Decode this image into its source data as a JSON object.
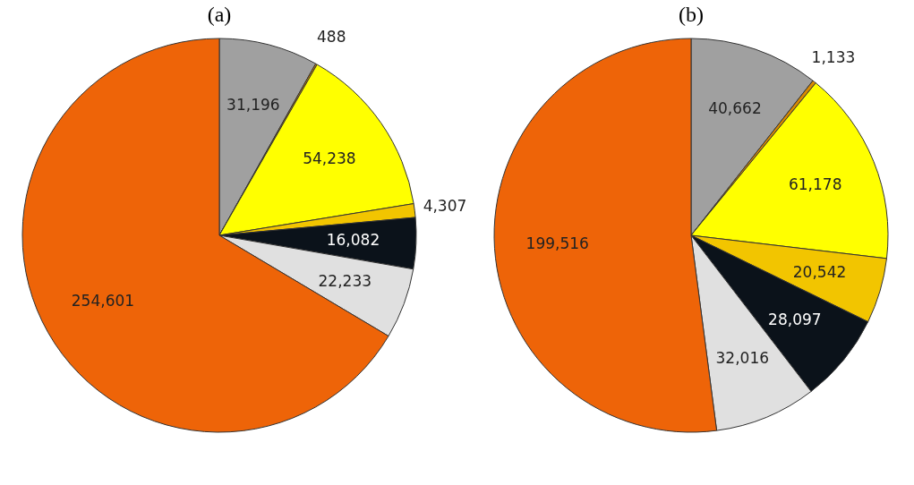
{
  "chart_data": [
    {
      "type": "pie",
      "title": "(a)",
      "categories": [
        null,
        null,
        null,
        null,
        null,
        null,
        null
      ],
      "values": [
        31196,
        488,
        54238,
        4307,
        16082,
        22233,
        254601
      ],
      "colors": [
        "#a0a0a0",
        "#d98a00",
        "#ffff00",
        "#f2c500",
        "#0b121a",
        "#e0e0e0",
        "#ee6408"
      ],
      "value_labels": [
        "31,196",
        "488",
        "54,238",
        "4,307",
        "16,082",
        "22,233",
        "254,601"
      ],
      "legend": false
    },
    {
      "type": "pie",
      "title": "(b)",
      "categories": [
        null,
        null,
        null,
        null,
        null,
        null,
        null
      ],
      "values": [
        40662,
        1133,
        61178,
        20542,
        28097,
        32016,
        199516
      ],
      "colors": [
        "#a0a0a0",
        "#d98a00",
        "#ffff00",
        "#f2c500",
        "#0b121a",
        "#e0e0e0",
        "#ee6408"
      ],
      "value_labels": [
        "40,662",
        "1,133",
        "61,178",
        "20,542",
        "28,097",
        "32,016",
        "199,516"
      ],
      "legend": false
    }
  ]
}
